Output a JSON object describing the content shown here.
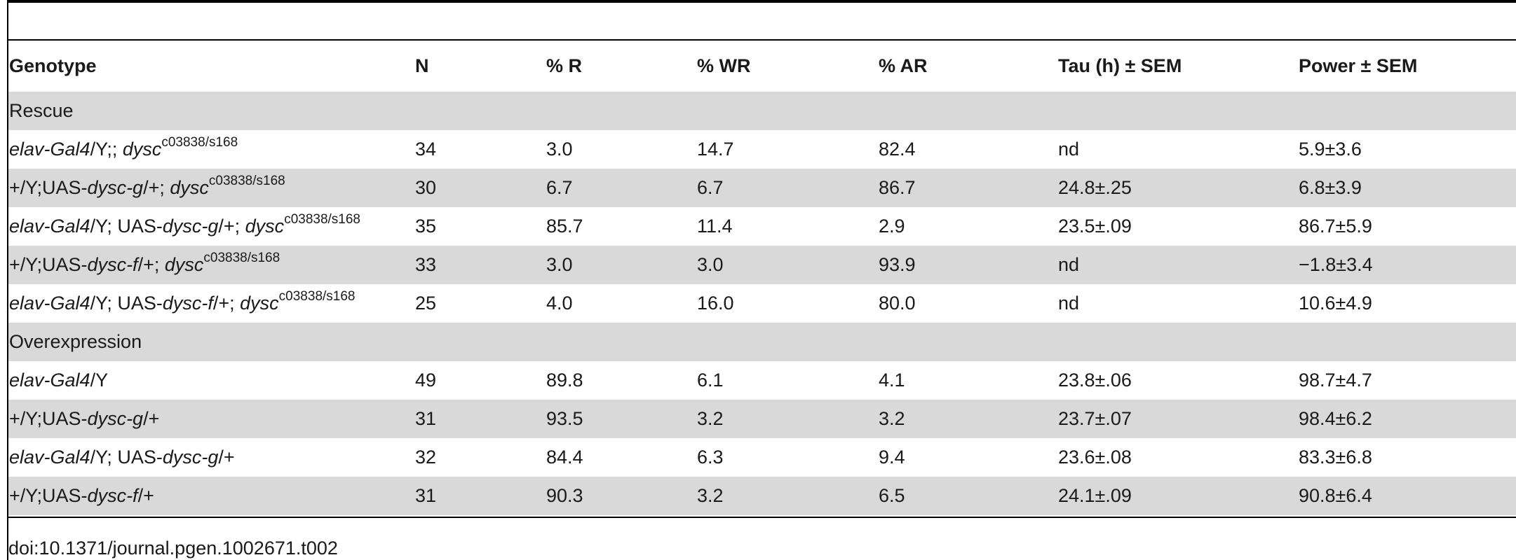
{
  "table": {
    "headers": [
      "Genotype",
      "N",
      "% R",
      "% WR",
      "% AR",
      "Tau (h) ± SEM",
      "Power ± SEM"
    ],
    "sections": [
      {
        "label": "Rescue",
        "rows": [
          {
            "genotype": [
              {
                "t": "elav-Gal4",
                "i": true
              },
              {
                "t": "/Y;; "
              },
              {
                "t": "dysc",
                "i": true
              },
              {
                "t": "c03838/s168",
                "sup": true
              }
            ],
            "n": "34",
            "r": "3.0",
            "wr": "14.7",
            "ar": "82.4",
            "tau": "nd",
            "power": "5.9±3.6"
          },
          {
            "genotype": [
              {
                "t": "+/Y;UAS-"
              },
              {
                "t": "dysc-g",
                "i": true
              },
              {
                "t": "/+; "
              },
              {
                "t": "dysc",
                "i": true
              },
              {
                "t": "c03838/s168",
                "sup": true
              }
            ],
            "n": "30",
            "r": "6.7",
            "wr": "6.7",
            "ar": "86.7",
            "tau": "24.8±.25",
            "power": "6.8±3.9"
          },
          {
            "genotype": [
              {
                "t": "elav-Gal4",
                "i": true
              },
              {
                "t": "/Y; UAS-"
              },
              {
                "t": "dysc-g",
                "i": true
              },
              {
                "t": "/+; "
              },
              {
                "t": "dysc",
                "i": true
              },
              {
                "t": "c03838/s168",
                "sup": true
              }
            ],
            "n": "35",
            "r": "85.7",
            "wr": "11.4",
            "ar": "2.9",
            "tau": "23.5±.09",
            "power": "86.7±5.9"
          },
          {
            "genotype": [
              {
                "t": "+/Y;UAS-"
              },
              {
                "t": "dysc-f",
                "i": true
              },
              {
                "t": "/+; "
              },
              {
                "t": "dysc",
                "i": true
              },
              {
                "t": "c03838/s168",
                "sup": true
              }
            ],
            "n": "33",
            "r": "3.0",
            "wr": "3.0",
            "ar": "93.9",
            "tau": "nd",
            "power": "−1.8±3.4"
          },
          {
            "genotype": [
              {
                "t": "elav-Gal4",
                "i": true
              },
              {
                "t": "/Y; UAS-"
              },
              {
                "t": "dysc-f",
                "i": true
              },
              {
                "t": "/+; "
              },
              {
                "t": "dysc",
                "i": true
              },
              {
                "t": "c03838/s168",
                "sup": true
              }
            ],
            "n": "25",
            "r": "4.0",
            "wr": "16.0",
            "ar": "80.0",
            "tau": "nd",
            "power": "10.6±4.9"
          }
        ]
      },
      {
        "label": "Overexpression",
        "rows": [
          {
            "genotype": [
              {
                "t": "elav-Gal4",
                "i": true
              },
              {
                "t": "/Y"
              }
            ],
            "n": "49",
            "r": "89.8",
            "wr": "6.1",
            "ar": "4.1",
            "tau": "23.8±.06",
            "power": "98.7±4.7"
          },
          {
            "genotype": [
              {
                "t": "+/Y;UAS-"
              },
              {
                "t": "dysc-g",
                "i": true
              },
              {
                "t": "/+"
              }
            ],
            "n": "31",
            "r": "93.5",
            "wr": "3.2",
            "ar": "3.2",
            "tau": "23.7±.07",
            "power": "98.4±6.2"
          },
          {
            "genotype": [
              {
                "t": "elav-Gal4",
                "i": true
              },
              {
                "t": "/Y; UAS-"
              },
              {
                "t": "dysc-g",
                "i": true
              },
              {
                "t": "/+"
              }
            ],
            "n": "32",
            "r": "84.4",
            "wr": "6.3",
            "ar": "9.4",
            "tau": "23.6±.08",
            "power": "83.3±6.8"
          },
          {
            "genotype": [
              {
                "t": "+/Y;UAS-"
              },
              {
                "t": "dysc-f",
                "i": true
              },
              {
                "t": "/+"
              }
            ],
            "n": "31",
            "r": "90.3",
            "wr": "3.2",
            "ar": "6.5",
            "tau": "24.1±.09",
            "power": "90.8±6.4"
          }
        ]
      }
    ]
  },
  "footer": {
    "doi": "doi:10.1371/journal.pgen.1002671.t002"
  },
  "colors": {
    "shade": "#d9d9d9",
    "rule": "#000000"
  }
}
